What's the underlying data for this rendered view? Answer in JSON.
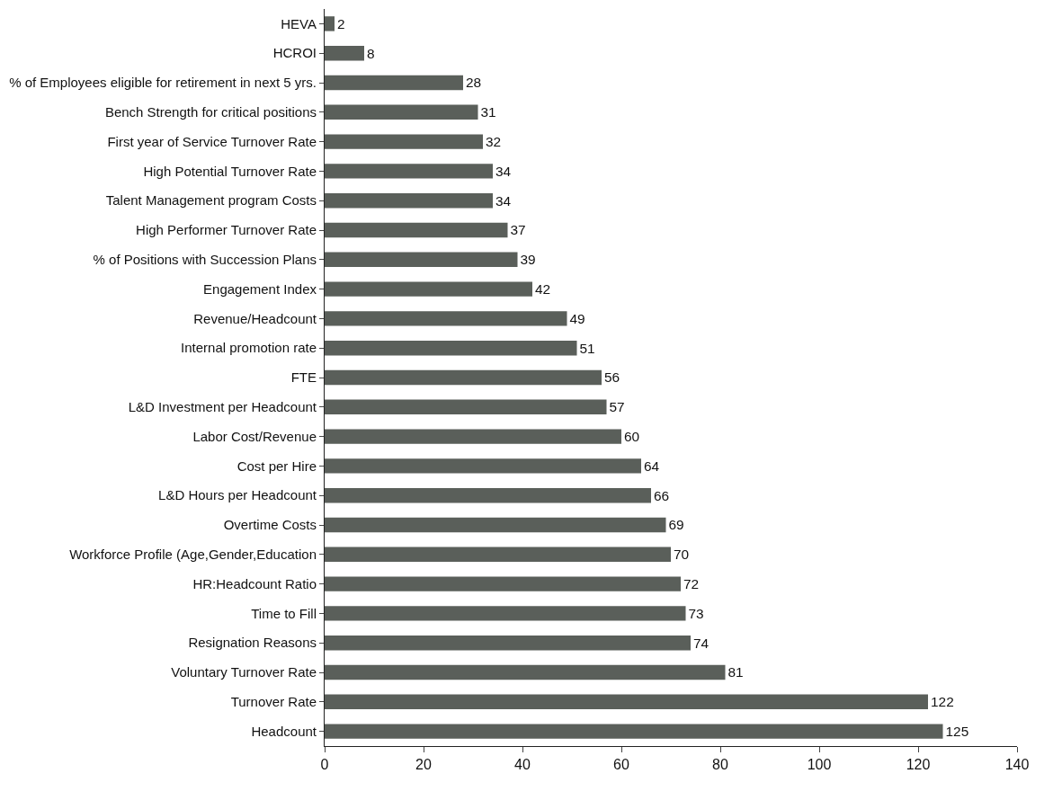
{
  "chart_data": {
    "type": "bar",
    "orientation": "horizontal",
    "categories": [
      "HEVA",
      "HCROI",
      "% of Employees eligible for retirement in next 5 yrs.",
      "Bench Strength for critical positions",
      "First year of Service Turnover Rate",
      "High Potential Turnover Rate",
      "Talent Management program Costs",
      "High Performer Turnover Rate",
      "% of Positions with Succession Plans",
      "Engagement Index",
      "Revenue/Headcount",
      "Internal promotion rate",
      "FTE",
      "L&D Investment per Headcount",
      "Labor Cost/Revenue",
      "Cost per Hire",
      "L&D Hours per Headcount",
      "Overtime Costs",
      "Workforce Profile (Age,Gender,Education",
      "HR:Headcount Ratio",
      "Time to Fill",
      "Resignation Reasons",
      "Voluntary Turnover Rate",
      "Turnover Rate",
      "Headcount"
    ],
    "values": [
      2,
      8,
      28,
      31,
      32,
      34,
      34,
      37,
      39,
      42,
      49,
      51,
      56,
      57,
      60,
      64,
      66,
      69,
      70,
      72,
      73,
      74,
      81,
      122,
      125
    ],
    "color": "#5a5f5a",
    "xlim": [
      0,
      140
    ],
    "xticks": [
      0,
      20,
      40,
      60,
      80,
      100,
      120,
      140
    ],
    "data_labels": true
  }
}
